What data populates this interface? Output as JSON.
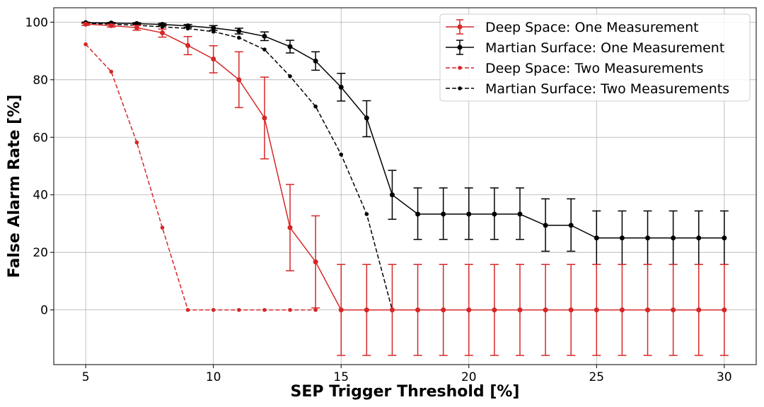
{
  "chart_data": {
    "type": "line",
    "title": "",
    "xlabel": "SEP Trigger Threshold [%]",
    "ylabel": "False Alarm Rate [%]",
    "xlim": [
      3.75,
      31.25
    ],
    "ylim": [
      -19,
      105
    ],
    "xticks": [
      5,
      10,
      15,
      20,
      25,
      30
    ],
    "yticks": [
      0,
      20,
      40,
      60,
      80,
      100
    ],
    "grid": true,
    "legend_position": "top-right",
    "series": [
      {
        "name": "Deep Space: One Measurement",
        "color": "#d62728",
        "style": "solid",
        "error_bars": true,
        "x": [
          5,
          6,
          7,
          8,
          9,
          10,
          11,
          12,
          13,
          14,
          15,
          16,
          17,
          18,
          19,
          20,
          21,
          22,
          23,
          24,
          25,
          26,
          27,
          28,
          29,
          30
        ],
        "y": [
          99.3,
          98.8,
          98.1,
          96.3,
          91.9,
          87.2,
          80.0,
          66.7,
          28.6,
          16.7,
          0,
          0,
          0,
          0,
          0,
          0,
          0,
          0,
          0,
          0,
          0,
          0,
          0,
          0,
          0,
          0
        ],
        "err_low": [
          0.4,
          0.5,
          0.9,
          1.5,
          3.2,
          4.8,
          9.7,
          14.2,
          15.0,
          16.0,
          15.8,
          15.8,
          15.8,
          15.8,
          15.8,
          15.8,
          15.8,
          15.8,
          15.8,
          15.8,
          15.8,
          15.8,
          15.8,
          15.8,
          15.8,
          15.8
        ],
        "err_high": [
          0.3,
          0.5,
          0.8,
          1.3,
          3.1,
          4.6,
          9.7,
          14.2,
          15.0,
          16.0,
          15.8,
          15.8,
          15.8,
          15.8,
          15.8,
          15.8,
          15.8,
          15.8,
          15.8,
          15.8,
          15.8,
          15.8,
          15.8,
          15.8,
          15.8,
          15.8
        ]
      },
      {
        "name": "Martian Surface: One Measurement",
        "color": "#000000",
        "style": "solid",
        "error_bars": true,
        "x": [
          5,
          6,
          7,
          8,
          9,
          10,
          11,
          12,
          13,
          14,
          15,
          16,
          17,
          18,
          19,
          20,
          21,
          22,
          23,
          24,
          25,
          26,
          27,
          28,
          29,
          30
        ],
        "y": [
          99.8,
          99.7,
          99.5,
          99.2,
          98.7,
          98.0,
          96.9,
          95.1,
          91.5,
          86.5,
          77.4,
          66.7,
          40.0,
          33.3,
          33.3,
          33.3,
          33.3,
          33.3,
          29.4,
          29.4,
          25.0,
          25.0,
          25.0,
          25.0,
          25.0,
          25.0
        ],
        "err_low": [
          0.2,
          0.2,
          0.3,
          0.4,
          0.5,
          0.8,
          1.0,
          1.5,
          2.2,
          3.2,
          4.8,
          6.5,
          8.5,
          8.8,
          8.8,
          8.8,
          8.8,
          8.8,
          9.0,
          9.0,
          9.2,
          9.2,
          9.2,
          9.2,
          9.2,
          9.2
        ],
        "err_high": [
          0.2,
          0.2,
          0.3,
          0.4,
          0.5,
          0.8,
          1.0,
          1.5,
          2.2,
          3.2,
          4.8,
          6.0,
          8.5,
          9.1,
          9.1,
          9.1,
          9.1,
          9.1,
          9.2,
          9.2,
          9.4,
          9.4,
          9.4,
          9.4,
          9.4,
          9.4
        ]
      },
      {
        "name": "Deep Space: Two Measurements",
        "color": "#d62728",
        "style": "dashed",
        "error_bars": false,
        "x": [
          5,
          6,
          7,
          8,
          9,
          10,
          11,
          12,
          13,
          14
        ],
        "y": [
          92.3,
          82.8,
          58.2,
          28.6,
          0,
          0,
          0,
          0,
          0,
          0
        ]
      },
      {
        "name": "Martian Surface: Two Measurements",
        "color": "#000000",
        "style": "dashed",
        "error_bars": false,
        "x": [
          5,
          6,
          7,
          8,
          9,
          10,
          11,
          12,
          13,
          14,
          15,
          16,
          17
        ],
        "y": [
          99.6,
          99.3,
          98.9,
          98.4,
          97.8,
          96.7,
          94.6,
          90.5,
          81.2,
          70.7,
          54.0,
          33.3,
          0
        ]
      }
    ]
  }
}
